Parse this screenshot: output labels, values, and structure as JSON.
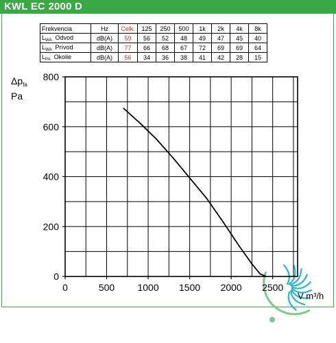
{
  "header": {
    "title": "KWL EC 2000 D"
  },
  "spec_table": {
    "headers": [
      "Frekvencia",
      "Hz",
      "Celk.",
      "125",
      "250",
      "500",
      "1k",
      "2k",
      "4k",
      "8k"
    ],
    "rows": [
      {
        "sym": "L",
        "sub": "WA",
        "name": "Odvod",
        "unit": "dB(A)",
        "total": "59",
        "bands": [
          "56",
          "52",
          "48",
          "49",
          "47",
          "45",
          "40"
        ]
      },
      {
        "sym": "L",
        "sub": "WA",
        "name": "Prívod",
        "unit": "dB(A)",
        "total": "77",
        "bands": [
          "66",
          "68",
          "67",
          "72",
          "69",
          "69",
          "64"
        ]
      },
      {
        "sym": "L",
        "sub": "PA",
        "name": "Okolie",
        "unit": "dB(A)",
        "total": "56",
        "bands": [
          "34",
          "36",
          "38",
          "41",
          "42",
          "28",
          "15"
        ]
      }
    ],
    "total_color": "#d0302a"
  },
  "chart_data": {
    "type": "line",
    "ylabel_main": "Δp",
    "ylabel_sub": "fa",
    "ylabel_unit": "Pa",
    "xlabel": "V m³/h",
    "xlim": [
      0,
      2800
    ],
    "ylim": [
      0,
      800
    ],
    "x_ticks": [
      0,
      500,
      1000,
      1500,
      2000,
      2500
    ],
    "y_ticks": [
      0,
      200,
      400,
      600,
      800
    ],
    "grid": true,
    "series": [
      {
        "x": [
          700,
          900,
          1100,
          1300,
          1500,
          1700,
          1900,
          2100,
          2250,
          2350,
          2420
        ],
        "y": [
          675,
          615,
          550,
          475,
          395,
          315,
          220,
          120,
          50,
          10,
          0
        ]
      }
    ]
  },
  "colors": {
    "accent": "#3aa845",
    "logo_green": "#7cc98a",
    "logo_cyan": "#29b6c9"
  }
}
